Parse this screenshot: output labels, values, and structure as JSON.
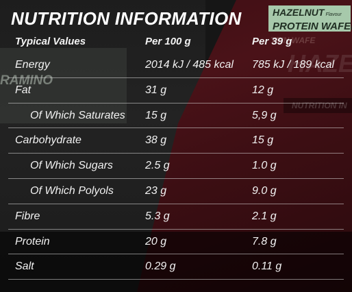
{
  "title": "NUTRITION INFORMATION",
  "badge": {
    "line1": "HAZELNUT",
    "flavour": "Flavour",
    "line2": "PROTEIN WAFER"
  },
  "background_text": {
    "pack_left": "RAMINO",
    "pack_right_small": "TEIN WAFE",
    "pack_right_large": "HAZEL",
    "pack_right_label": "NUTRITION IN"
  },
  "table": {
    "headers": [
      "Typical Values",
      "Per 100 g",
      "Per 39 g"
    ],
    "rows": [
      {
        "label": "Energy",
        "per100": "2014 kJ / 485 kcal",
        "perServing": "785 kJ / 189 kcal",
        "sub": false
      },
      {
        "label": "Fat",
        "per100": "31 g",
        "perServing": "12 g",
        "sub": false
      },
      {
        "label": "Of Which Saturates",
        "per100": "15 g",
        "perServing": "5,9 g",
        "sub": true
      },
      {
        "label": "Carbohydrate",
        "per100": "38 g",
        "perServing": "15 g",
        "sub": false
      },
      {
        "label": "Of Which Sugars",
        "per100": "2.5 g",
        "perServing": "1.0 g",
        "sub": true
      },
      {
        "label": "Of Which Polyols",
        "per100": "23 g",
        "perServing": "9.0 g",
        "sub": true
      },
      {
        "label": "Fibre",
        "per100": "5.3 g",
        "perServing": "2.1 g",
        "sub": false
      },
      {
        "label": "Protein",
        "per100": "20 g",
        "perServing": "7.8 g",
        "sub": false
      },
      {
        "label": "Salt",
        "per100": "0.29 g",
        "perServing": "0.11 g",
        "sub": false
      }
    ]
  },
  "colors": {
    "badge_bg": "#a7c9ab",
    "right_bg": "#4a1218",
    "text": "#f2f2f2"
  }
}
